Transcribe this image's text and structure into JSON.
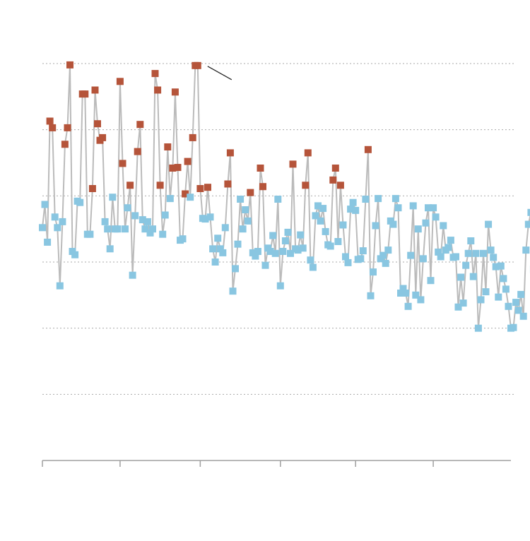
{
  "colors": {
    "background": "#ffffff",
    "line": "#bbbbbb",
    "grid": "#aaaaaa",
    "axis": "#a0a0a0",
    "marker_high": "#b5543a",
    "marker_low": "#89c6e1",
    "annotation": "#222222"
  },
  "chart_data": {
    "type": "line",
    "title": "",
    "xlabel": "",
    "ylabel": "",
    "x_range": [
      0,
      187
    ],
    "ylim": [
      0,
      600
    ],
    "grid": "horizontal-dashed",
    "y_gridlines": [
      100,
      200,
      300,
      400,
      500,
      600
    ],
    "x_ticks": [
      0,
      31,
      63,
      95,
      125,
      156
    ],
    "tick_labels_visible": false,
    "legend": "none",
    "threshold_high": 400,
    "annotation_point_index": 62,
    "series": [
      {
        "values": [
          352,
          387,
          330,
          513,
          503,
          368,
          352,
          264,
          361,
          478,
          503,
          598,
          316,
          311,
          392,
          390,
          554,
          554,
          342,
          342,
          411,
          560,
          509,
          484,
          488,
          361,
          350,
          320,
          398,
          350,
          350,
          573,
          449,
          350,
          382,
          416,
          280,
          370,
          467,
          508,
          364,
          350,
          361,
          344,
          350,
          585,
          560,
          416,
          342,
          371,
          474,
          396,
          442,
          557,
          443,
          333,
          335,
          403,
          452,
          398,
          488,
          597,
          597,
          411,
          366,
          365,
          413,
          368,
          320,
          300,
          336,
          320,
          314,
          352,
          418,
          465,
          256,
          290,
          327,
          395,
          350,
          379,
          362,
          405,
          314,
          309,
          316,
          442,
          414,
          295,
          321,
          316,
          340,
          313,
          395,
          264,
          316,
          332,
          345,
          313,
          448,
          320,
          318,
          341,
          321,
          416,
          465,
          303,
          292,
          370,
          385,
          362,
          381,
          346,
          326,
          324,
          424,
          442,
          331,
          416,
          356,
          308,
          299,
          380,
          390,
          378,
          304,
          305,
          317,
          395,
          470,
          249,
          285,
          355,
          396,
          305,
          310,
          298,
          318,
          362,
          357,
          396,
          382,
          253,
          260,
          253,
          233,
          310,
          385,
          250,
          350,
          243,
          305,
          359,
          382,
          272,
          382,
          368,
          315,
          308,
          355,
          318,
          322,
          333,
          307,
          308,
          232,
          277,
          238,
          295,
          313,
          332,
          278,
          313,
          200,
          243,
          313,
          255,
          357,
          318,
          307,
          293,
          247,
          294,
          275,
          259,
          233,
          200,
          201,
          239,
          227,
          251,
          218,
          318,
          357,
          375,
          289,
          239,
          207,
          225,
          232,
          256,
          241,
          244,
          243
        ]
      }
    ]
  }
}
